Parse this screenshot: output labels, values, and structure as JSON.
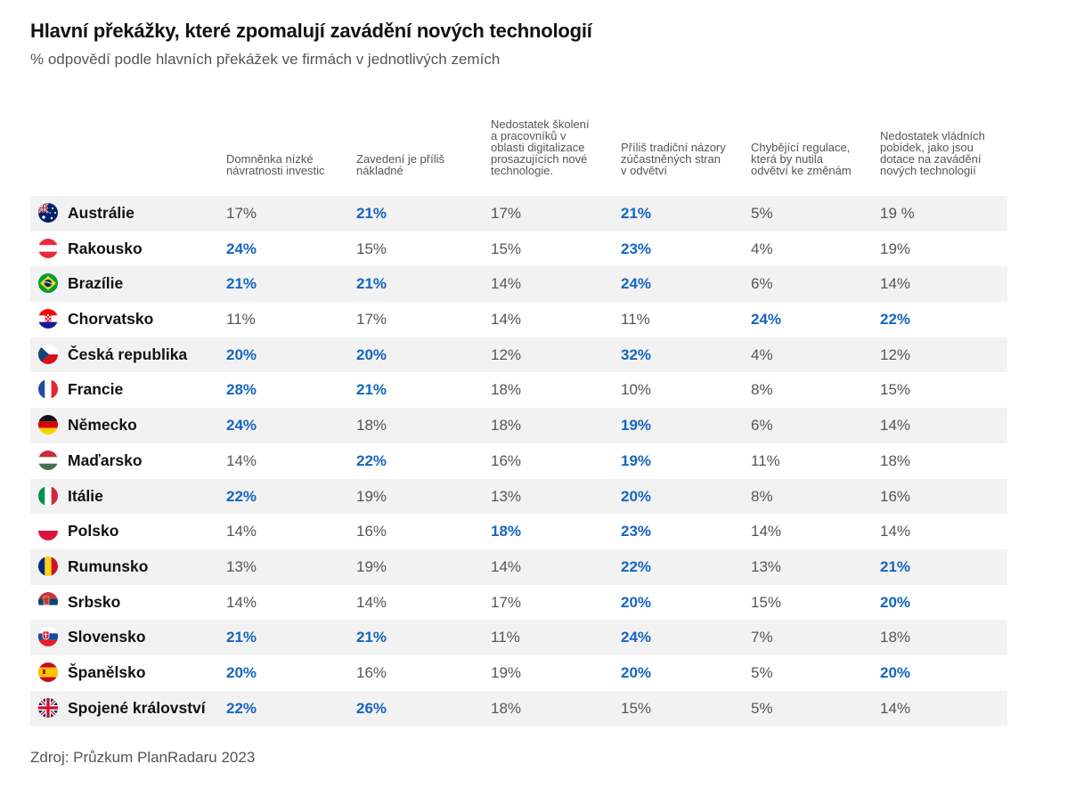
{
  "chart_data": {
    "type": "table",
    "title": "Hlavní překážky, které zpomalují zavádění nových technologií",
    "subtitle": "% odpovědí podle hlavních překážek ve firmách v jednotlivých zemích",
    "columns": [
      "Domněnka nízké\nnávratnosti investic",
      "Zavedení je příliš\nnákladné",
      "Nedostatek školení\na pracovníků v\noblasti digitalizace\nprosazujících nové\ntechnologie.",
      "Příliš tradiční názory\nzúčastněných stran\nv odvětví",
      "Chybějící regulace,\nkterá by nutila\nodvětví ke změnám",
      "Nedostatek vládních\npobídek, jako jsou\ndotace na zavádění\nnových technologií"
    ],
    "rows": [
      {
        "country": "Austrálie",
        "flag": "au",
        "values": [
          "17%",
          "21%",
          "17%",
          "21%",
          "5%",
          "19 %"
        ],
        "highlight": [
          false,
          true,
          false,
          true,
          false,
          false
        ]
      },
      {
        "country": "Rakousko",
        "flag": "at",
        "values": [
          "24%",
          "15%",
          "15%",
          "23%",
          "4%",
          "19%"
        ],
        "highlight": [
          true,
          false,
          false,
          true,
          false,
          false
        ]
      },
      {
        "country": "Brazílie",
        "flag": "br",
        "values": [
          "21%",
          "21%",
          "14%",
          "24%",
          "6%",
          "14%"
        ],
        "highlight": [
          true,
          true,
          false,
          true,
          false,
          false
        ]
      },
      {
        "country": "Chorvatsko",
        "flag": "hr",
        "values": [
          "11%",
          "17%",
          "14%",
          "11%",
          "24%",
          "22%"
        ],
        "highlight": [
          false,
          false,
          false,
          false,
          true,
          true
        ]
      },
      {
        "country": "Česká republika",
        "flag": "cz",
        "values": [
          "20%",
          "20%",
          "12%",
          "32%",
          "4%",
          "12%"
        ],
        "highlight": [
          true,
          true,
          false,
          true,
          false,
          false
        ]
      },
      {
        "country": "Francie",
        "flag": "fr",
        "values": [
          "28%",
          "21%",
          "18%",
          "10%",
          "8%",
          "15%"
        ],
        "highlight": [
          true,
          true,
          false,
          false,
          false,
          false
        ]
      },
      {
        "country": "Německo",
        "flag": "de",
        "values": [
          "24%",
          "18%",
          "18%",
          "19%",
          "6%",
          "14%"
        ],
        "highlight": [
          true,
          false,
          false,
          true,
          false,
          false
        ]
      },
      {
        "country": "Maďarsko",
        "flag": "hu",
        "values": [
          "14%",
          "22%",
          "16%",
          "19%",
          "11%",
          "18%"
        ],
        "highlight": [
          false,
          true,
          false,
          true,
          false,
          false
        ]
      },
      {
        "country": "Itálie",
        "flag": "it",
        "values": [
          "22%",
          "19%",
          "13%",
          "20%",
          "8%",
          "16%"
        ],
        "highlight": [
          true,
          false,
          false,
          true,
          false,
          false
        ]
      },
      {
        "country": "Polsko",
        "flag": "pl",
        "values": [
          "14%",
          "16%",
          "18%",
          "23%",
          "14%",
          "14%"
        ],
        "highlight": [
          false,
          false,
          true,
          true,
          false,
          false
        ]
      },
      {
        "country": "Rumunsko",
        "flag": "ro",
        "values": [
          "13%",
          "19%",
          "14%",
          "22%",
          "13%",
          "21%"
        ],
        "highlight": [
          false,
          false,
          false,
          true,
          false,
          true
        ]
      },
      {
        "country": "Srbsko",
        "flag": "rs",
        "values": [
          "14%",
          "14%",
          "17%",
          "20%",
          "15%",
          "20%"
        ],
        "highlight": [
          false,
          false,
          false,
          true,
          false,
          true
        ]
      },
      {
        "country": "Slovensko",
        "flag": "sk",
        "values": [
          "21%",
          "21%",
          "11%",
          "24%",
          "7%",
          "18%"
        ],
        "highlight": [
          true,
          true,
          false,
          true,
          false,
          false
        ]
      },
      {
        "country": "Španělsko",
        "flag": "es",
        "values": [
          "20%",
          "16%",
          "19%",
          "20%",
          "5%",
          "20%"
        ],
        "highlight": [
          true,
          false,
          false,
          true,
          false,
          true
        ]
      },
      {
        "country": "Spojené království",
        "flag": "gb",
        "values": [
          "22%",
          "26%",
          "18%",
          "15%",
          "5%",
          "14%"
        ],
        "highlight": [
          true,
          true,
          false,
          false,
          false,
          false
        ]
      }
    ],
    "highlight_color": "#1565c0",
    "text_color": "#555555",
    "stripe_color": "#f2f2f2",
    "source": "Zdroj: Průzkum PlanRadaru 2023"
  }
}
